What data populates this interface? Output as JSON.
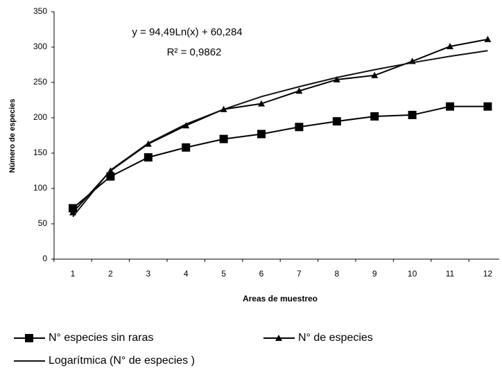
{
  "chart_data": {
    "type": "line",
    "y_label": "Número de especies",
    "x_label": "Areas de muestreo",
    "annotations": [
      "y = 94,49Ln(x) + 60,284",
      "R² = 0,9862"
    ],
    "categories": [
      "1",
      "2",
      "3",
      "4",
      "5",
      "6",
      "7",
      "8",
      "9",
      "10",
      "11",
      "12"
    ],
    "series": [
      {
        "name": "N° especies sin raras",
        "color": "#000000",
        "marker": "square",
        "values": [
          72,
          117,
          144,
          158,
          170,
          177,
          187,
          195,
          202,
          204,
          216,
          216
        ]
      },
      {
        "name": "N° de especies",
        "color": "#000000",
        "marker": "triangle",
        "values": [
          66,
          125,
          163,
          189,
          212,
          220,
          238,
          254,
          260,
          280,
          301,
          311
        ]
      },
      {
        "name": "Logarítmica (N° de especies )",
        "color": "#111111",
        "marker": "none",
        "values": [
          60,
          126,
          164,
          191,
          212,
          230,
          244,
          257,
          268,
          278,
          287,
          295
        ]
      }
    ],
    "ylim": [
      0,
      350
    ],
    "yticks": [
      0,
      50,
      100,
      150,
      200,
      250,
      300,
      350
    ],
    "grid": false
  }
}
